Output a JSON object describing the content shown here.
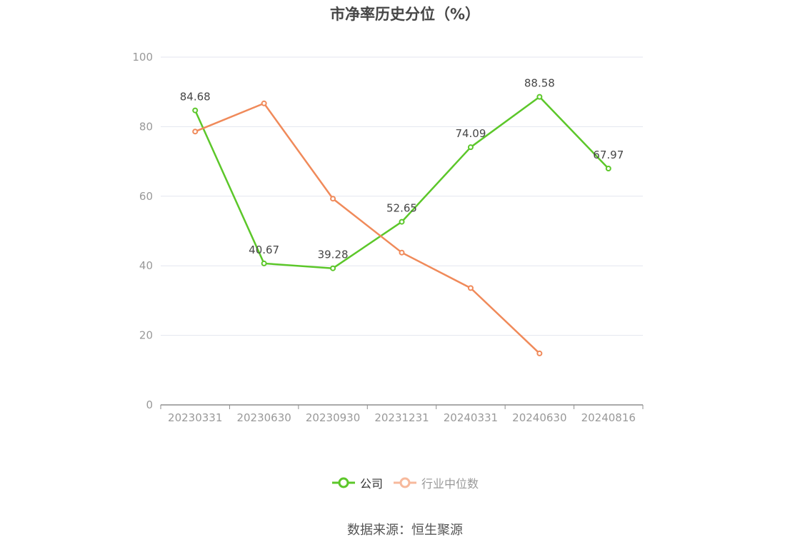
{
  "chart_data": {
    "type": "line",
    "title": "市净率历史分位（%）",
    "categories": [
      "20230331",
      "20230630",
      "20230930",
      "20231231",
      "20240331",
      "20240630",
      "20240816"
    ],
    "ylim": [
      0,
      100
    ],
    "yticks": [
      0,
      20,
      40,
      60,
      80,
      100
    ],
    "grid": true,
    "legend_position": "bottom",
    "series": [
      {
        "name": "公司",
        "color": "#5cc72a",
        "values": [
          84.68,
          40.67,
          39.28,
          52.65,
          74.09,
          88.58,
          67.97
        ],
        "labels": [
          "84.68",
          "40.67",
          "39.28",
          "52.65",
          "74.09",
          "88.58",
          "67.97"
        ],
        "show_labels": true
      },
      {
        "name": "行业中位数",
        "color": "#f08a5a",
        "legend_color": "#f7b99c",
        "values": [
          78.6,
          86.7,
          59.3,
          43.8,
          33.6,
          14.8,
          null
        ],
        "show_labels": false
      }
    ]
  },
  "source_text": "数据来源：恒生聚源"
}
